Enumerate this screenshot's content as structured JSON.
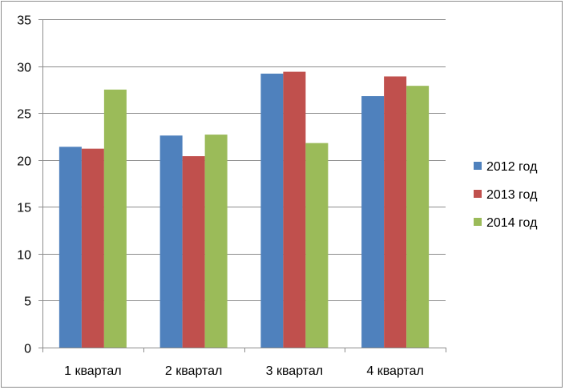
{
  "chart_data": {
    "type": "bar",
    "title": "",
    "xlabel": "",
    "ylabel": "",
    "categories": [
      "1 квартал",
      "2 квартал",
      "3 квартал",
      "4 квартал"
    ],
    "series": [
      {
        "name": "2012 год",
        "color": "#4f81bd",
        "values": [
          21.4,
          22.6,
          29.2,
          26.8
        ]
      },
      {
        "name": "2013 год",
        "color": "#c0504d",
        "values": [
          21.2,
          20.4,
          29.4,
          28.9
        ]
      },
      {
        "name": "2014 год",
        "color": "#9bbb59",
        "values": [
          27.5,
          22.7,
          21.8,
          27.9
        ]
      }
    ],
    "ylim": [
      0,
      35
    ],
    "yticks": [
      0,
      5,
      10,
      15,
      20,
      25,
      30,
      35
    ],
    "grid": {
      "horizontal": true,
      "color": "#8c8c8c"
    },
    "legend": {
      "position": "right"
    }
  }
}
